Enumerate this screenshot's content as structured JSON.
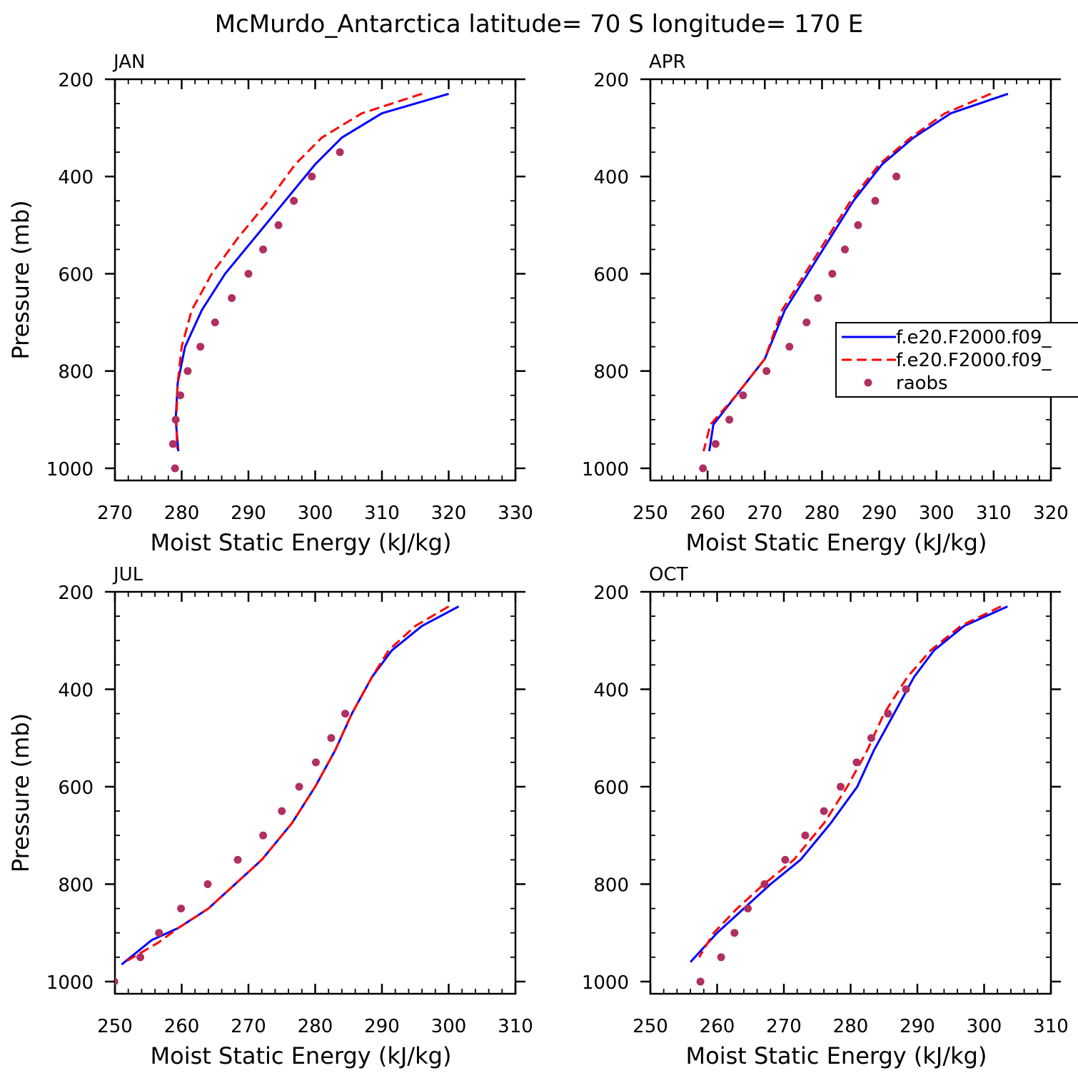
{
  "colors": {
    "model1": "#0000ff",
    "model2": "#ff0000",
    "obs": "#b03060",
    "axis": "#000000"
  },
  "chart_data": {
    "type": "line",
    "title": "McMurdo_Antarctica  latitude= 70 S longitude= 170 E",
    "xlabel": "Moist Static Energy (kJ/kg)",
    "ylabel": "Pressure (mb)",
    "y_inverted": true,
    "legend": {
      "placement": "right of APR panel",
      "entries": [
        {
          "key": "model1",
          "label": "f.e20.F2000.f09_",
          "style": "solid"
        },
        {
          "key": "model2",
          "label": "f.e20.F2000.f09_",
          "style": "dashed"
        },
        {
          "key": "obs",
          "label": "raobs",
          "style": "marker"
        }
      ]
    },
    "panels": [
      {
        "id": "jan",
        "label": "JAN",
        "xlim": [
          270,
          330
        ],
        "ylim": [
          1025,
          200
        ],
        "xticks": [
          270,
          280,
          290,
          300,
          310,
          320,
          330
        ],
        "xticklabels": [
          "270",
          "280",
          "290",
          "300",
          "310",
          "320",
          "330"
        ],
        "yticks": [
          200,
          400,
          600,
          800,
          1000
        ],
        "yticklabels": [
          "200",
          "400",
          "600",
          "800",
          "1000"
        ],
        "show_ylabel": true,
        "show_legend": false,
        "series": [
          {
            "key": "model1",
            "name": "f.e20.F2000.f09_",
            "x": [
              320.0,
              310.0,
              304.0,
              300.0,
              295.5,
              291.0,
              286.5,
              283.0,
              280.5,
              279.4,
              279.1,
              279.5
            ],
            "y": [
              230,
              270,
              320,
              375,
              450,
              525,
              600,
              675,
              750,
              825,
              900,
              965
            ]
          },
          {
            "key": "model2",
            "name": "f.e20.F2000.f09_",
            "x": [
              316.0,
              307.0,
              301.0,
              297.0,
              293.0,
              288.5,
              284.5,
              281.5,
              280.0,
              279.4,
              279.2,
              279.3
            ],
            "y": [
              230,
              270,
              320,
              375,
              450,
              525,
              600,
              675,
              750,
              825,
              900,
              960
            ]
          },
          {
            "key": "obs",
            "name": "raobs",
            "x": [
              303.7,
              299.5,
              296.8,
              294.5,
              292.2,
              290.0,
              287.5,
              285.0,
              282.8,
              280.9,
              279.8,
              279.1,
              278.7,
              279.0
            ],
            "y": [
              350,
              400,
              450,
              500,
              550,
              600,
              650,
              700,
              750,
              800,
              850,
              900,
              950,
              1000
            ]
          }
        ]
      },
      {
        "id": "apr",
        "label": "APR",
        "xlim": [
          250,
          320
        ],
        "ylim": [
          1025,
          200
        ],
        "xticks": [
          250,
          260,
          270,
          280,
          290,
          300,
          310,
          320
        ],
        "xticklabels": [
          "250",
          "260",
          "270",
          "280",
          "290",
          "300",
          "310",
          "320"
        ],
        "yticks": [
          200,
          400,
          600,
          800,
          1000
        ],
        "yticklabels": [
          "200",
          "400",
          "600",
          "800",
          "1000"
        ],
        "show_ylabel": false,
        "show_legend": true,
        "series": [
          {
            "key": "model1",
            "name": "f.e20.F2000.f09_",
            "x": [
              312.5,
              302.5,
              296.0,
              290.5,
              285.5,
              281.5,
              277.5,
              273.5,
              270.0,
              265.0,
              261.0,
              260.3
            ],
            "y": [
              230,
              270,
              320,
              375,
              450,
              525,
              600,
              675,
              775,
              850,
              910,
              965
            ]
          },
          {
            "key": "model2",
            "name": "f.e20.F2000.f09_",
            "x": [
              309.5,
              301.5,
              295.5,
              290.0,
              285.0,
              281.0,
              277.0,
              273.0,
              270.0,
              265.0,
              260.5,
              259.3
            ],
            "y": [
              230,
              270,
              320,
              375,
              450,
              525,
              600,
              675,
              775,
              850,
              910,
              965
            ]
          },
          {
            "key": "obs",
            "name": "raobs",
            "x": [
              293.0,
              289.3,
              286.3,
              284.0,
              281.8,
              279.3,
              277.3,
              274.3,
              270.3,
              266.2,
              263.8,
              261.4,
              259.2
            ],
            "y": [
              400,
              450,
              500,
              550,
              600,
              650,
              700,
              750,
              800,
              850,
              900,
              950,
              1000
            ]
          }
        ]
      },
      {
        "id": "jul",
        "label": "JUL",
        "xlim": [
          250,
          310
        ],
        "ylim": [
          1025,
          200
        ],
        "xticks": [
          250,
          260,
          270,
          280,
          290,
          300,
          310
        ],
        "xticklabels": [
          "250",
          "260",
          "270",
          "280",
          "290",
          "300",
          "310"
        ],
        "yticks": [
          200,
          400,
          600,
          800,
          1000
        ],
        "yticklabels": [
          "200",
          "400",
          "600",
          "800",
          "1000"
        ],
        "show_ylabel": true,
        "show_legend": false,
        "series": [
          {
            "key": "model1",
            "name": "f.e20.F2000.f09_",
            "x": [
              301.5,
              296.0,
              291.5,
              288.5,
              285.5,
              283.0,
              280.0,
              276.5,
              272.0,
              268.0,
              264.0,
              259.5,
              255.5,
              251.0
            ],
            "y": [
              230,
              270,
              320,
              375,
              450,
              525,
              600,
              675,
              750,
              800,
              850,
              890,
              915,
              965
            ]
          },
          {
            "key": "model2",
            "name": "f.e20.F2000.f09_",
            "x": [
              300.0,
              295.0,
              291.0,
              288.5,
              285.5,
              283.0,
              280.0,
              276.5,
              272.0,
              268.0,
              264.0,
              259.5,
              256.5,
              251.5
            ],
            "y": [
              230,
              270,
              320,
              375,
              450,
              525,
              600,
              675,
              750,
              800,
              850,
              890,
              920,
              960
            ]
          },
          {
            "key": "obs",
            "name": "raobs",
            "x": [
              284.5,
              282.4,
              280.1,
              277.6,
              275.0,
              272.2,
              268.4,
              263.9,
              259.9,
              256.6,
              253.8,
              249.9
            ],
            "y": [
              450,
              500,
              550,
              600,
              650,
              700,
              750,
              800,
              850,
              900,
              950,
              1000
            ]
          }
        ]
      },
      {
        "id": "oct",
        "label": "OCT",
        "xlim": [
          250,
          310
        ],
        "ylim": [
          1025,
          200
        ],
        "xticks": [
          250,
          260,
          270,
          280,
          290,
          300,
          310
        ],
        "xticklabels": [
          "250",
          "260",
          "270",
          "280",
          "290",
          "300",
          "310"
        ],
        "yticks": [
          200,
          400,
          600,
          800,
          1000
        ],
        "yticklabels": [
          "200",
          "400",
          "600",
          "800",
          "1000"
        ],
        "show_ylabel": false,
        "show_legend": false,
        "series": [
          {
            "key": "model1",
            "name": "f.e20.F2000.f09_",
            "x": [
              303.5,
              297.0,
              292.5,
              289.5,
              286.5,
              283.5,
              281.0,
              277.0,
              272.5,
              268.0,
              264.0,
              260.0,
              256.0
            ],
            "y": [
              230,
              270,
              320,
              375,
              450,
              525,
              600,
              675,
              750,
              800,
              850,
              900,
              960
            ]
          },
          {
            "key": "model2",
            "name": "f.e20.F2000.f09_",
            "x": [
              302.5,
              296.5,
              292.0,
              288.5,
              285.0,
              282.5,
              279.5,
              276.0,
              271.5,
              267.0,
              263.0,
              259.5,
              257.3
            ],
            "y": [
              230,
              270,
              320,
              375,
              450,
              525,
              600,
              675,
              750,
              800,
              850,
              900,
              950
            ]
          },
          {
            "key": "obs",
            "name": "raobs",
            "x": [
              288.3,
              285.6,
              283.1,
              280.9,
              278.5,
              276.0,
              273.2,
              270.2,
              267.1,
              264.6,
              262.6,
              260.6,
              257.5
            ],
            "y": [
              400,
              450,
              500,
              550,
              600,
              650,
              700,
              750,
              800,
              850,
              900,
              950,
              1000
            ]
          }
        ]
      }
    ]
  }
}
